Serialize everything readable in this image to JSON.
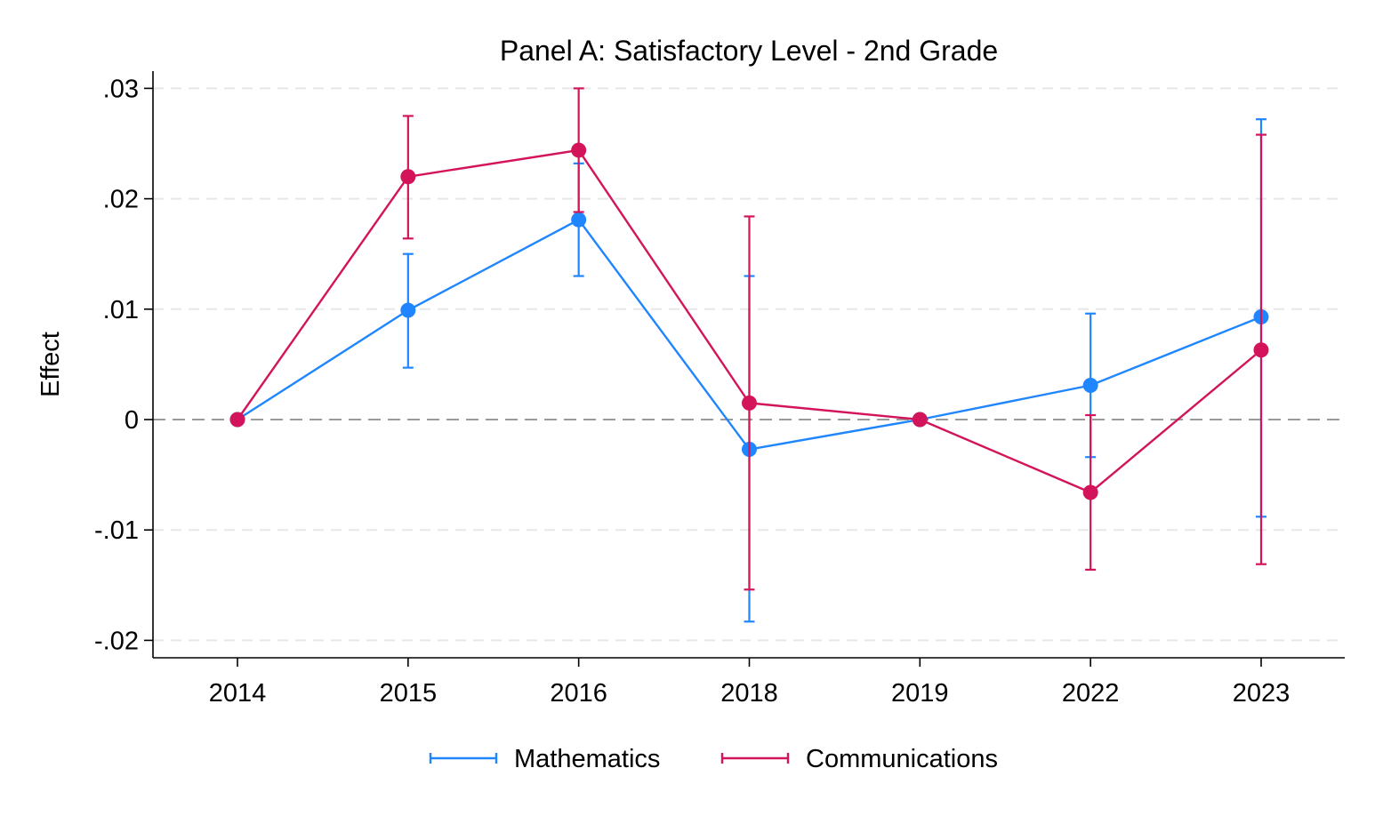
{
  "chart_data": {
    "type": "line",
    "title": "Panel A: Satisfactory Level - 2nd Grade",
    "ylabel": "Effect",
    "xlabel": "",
    "categories": [
      "2014",
      "2015",
      "2016",
      "2018",
      "2019",
      "2022",
      "2023"
    ],
    "ylim": [
      -0.0215,
      0.0315
    ],
    "yticks": [
      {
        "value": 0.03,
        "label": ".03"
      },
      {
        "value": 0.02,
        "label": ".02"
      },
      {
        "value": 0.01,
        "label": ".01"
      },
      {
        "value": 0,
        "label": "0"
      },
      {
        "value": -0.01,
        "label": "-.01"
      },
      {
        "value": -0.02,
        "label": "-.02"
      }
    ],
    "reference_line": 0,
    "grid": "horizontal dashed",
    "legend_position": "bottom",
    "series": [
      {
        "name": "Mathematics",
        "color": "#1f86ff",
        "values": [
          0,
          0.0099,
          0.0181,
          -0.0027,
          0,
          0.0031,
          0.0093
        ],
        "ci_lower": [
          null,
          0.0047,
          0.013,
          -0.0183,
          null,
          -0.0034,
          -0.0088
        ],
        "ci_upper": [
          null,
          0.015,
          0.0232,
          0.013,
          null,
          0.0096,
          0.0272
        ]
      },
      {
        "name": "Communications",
        "color": "#d4145a",
        "values": [
          0,
          0.022,
          0.0244,
          0.0015,
          0,
          -0.0066,
          0.0063
        ],
        "ci_lower": [
          null,
          0.0164,
          0.0188,
          -0.0154,
          null,
          -0.0136,
          -0.0131
        ],
        "ci_upper": [
          null,
          0.0275,
          0.03,
          0.0184,
          null,
          0.0004,
          0.0258
        ]
      }
    ]
  }
}
